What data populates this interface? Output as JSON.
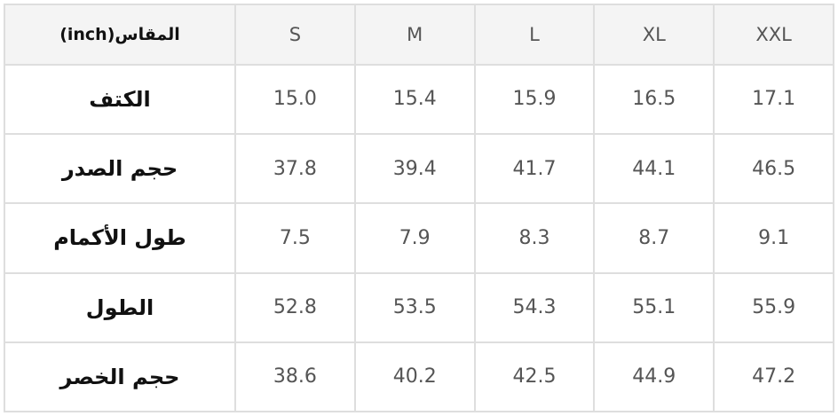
{
  "table": {
    "header": [
      "المقاس(inch)",
      "S",
      "M",
      "L",
      "XL",
      "XXL"
    ],
    "rows": [
      [
        "الكتف",
        "15.0",
        "15.4",
        "15.9",
        "16.5",
        "17.1"
      ],
      [
        "حجم الصدر",
        "37.8",
        "39.4",
        "41.7",
        "44.1",
        "46.5"
      ],
      [
        "طول الأكمام",
        "7.5",
        "7.9",
        "8.3",
        "8.7",
        "9.1"
      ],
      [
        "الطول",
        "52.8",
        "53.5",
        "54.3",
        "55.1",
        "55.9"
      ],
      [
        "حجم الخصر",
        "38.6",
        "40.2",
        "42.5",
        "44.9",
        "47.2"
      ]
    ]
  }
}
